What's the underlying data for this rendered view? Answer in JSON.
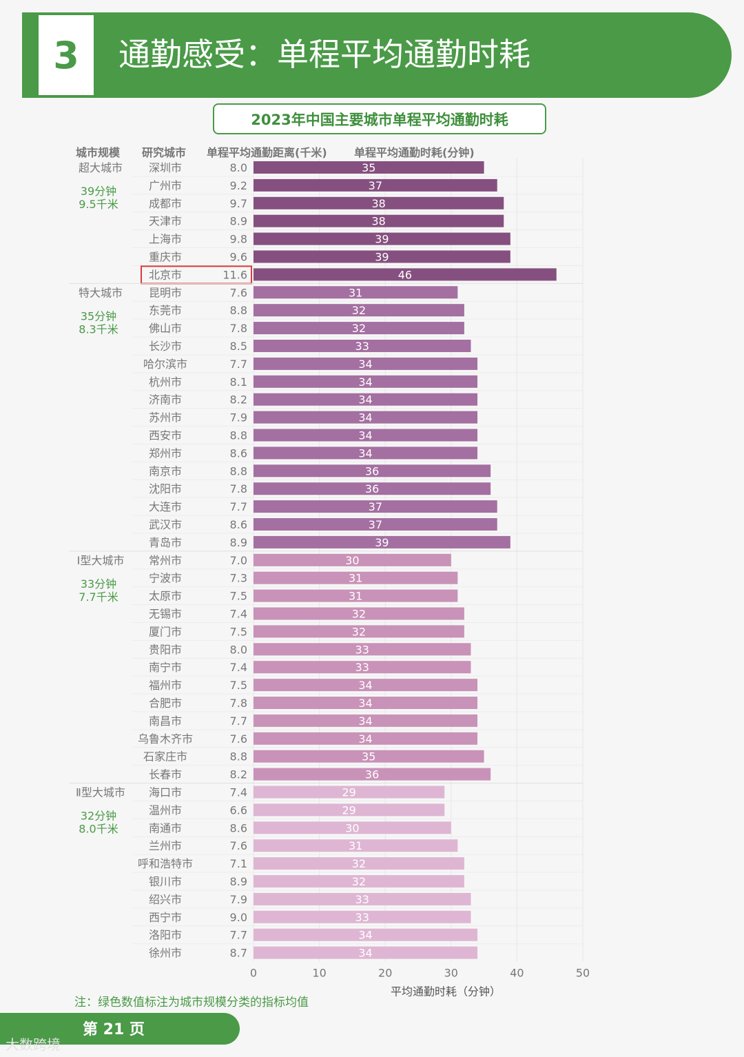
{
  "header": {
    "number": "3",
    "title": "通勤感受：单程平均通勤时耗"
  },
  "chart_title": "2023年中国主要城市单程平均通勤时耗",
  "columns": {
    "scale": "城市规模",
    "city": "研究城市",
    "distance": "单程平均通勤距离(千米)",
    "time": "单程平均通勤时耗(分钟)"
  },
  "note": "注：绿色数值标注为城市规模分类的指标均值",
  "footer": {
    "page": "第 21 页",
    "watermark": "大数跨境"
  },
  "colors": {
    "green": "#4a9a47",
    "group1": "#85507f",
    "group2": "#a46fa1",
    "group3": "#c992b8",
    "group4": "#deb6d3",
    "highlight": "#d83a3a"
  },
  "chart_data": {
    "type": "bar",
    "orientation": "horizontal",
    "xlabel": "平均通勤时耗（分钟）",
    "xlim": [
      0,
      50
    ],
    "xticks": [
      0,
      10,
      20,
      30,
      40,
      50
    ],
    "grid": true,
    "highlighted_city": "北京市",
    "groups": [
      {
        "name": "超大城市",
        "avg_time": "39分钟",
        "avg_distance": "9.5千米",
        "color_key": "group1",
        "cities": [
          {
            "city": "深圳市",
            "distance": "8.0",
            "time": 35
          },
          {
            "city": "广州市",
            "distance": "9.2",
            "time": 37
          },
          {
            "city": "成都市",
            "distance": "9.7",
            "time": 38
          },
          {
            "city": "天津市",
            "distance": "8.9",
            "time": 38
          },
          {
            "city": "上海市",
            "distance": "9.8",
            "time": 39
          },
          {
            "city": "重庆市",
            "distance": "9.6",
            "time": 39
          },
          {
            "city": "北京市",
            "distance": "11.6",
            "time": 46
          }
        ]
      },
      {
        "name": "特大城市",
        "avg_time": "35分钟",
        "avg_distance": "8.3千米",
        "color_key": "group2",
        "cities": [
          {
            "city": "昆明市",
            "distance": "7.6",
            "time": 31
          },
          {
            "city": "东莞市",
            "distance": "8.8",
            "time": 32
          },
          {
            "city": "佛山市",
            "distance": "7.8",
            "time": 32
          },
          {
            "city": "长沙市",
            "distance": "8.5",
            "time": 33
          },
          {
            "city": "哈尔滨市",
            "distance": "7.7",
            "time": 34
          },
          {
            "city": "杭州市",
            "distance": "8.1",
            "time": 34
          },
          {
            "city": "济南市",
            "distance": "8.2",
            "time": 34
          },
          {
            "city": "苏州市",
            "distance": "7.9",
            "time": 34
          },
          {
            "city": "西安市",
            "distance": "8.8",
            "time": 34
          },
          {
            "city": "郑州市",
            "distance": "8.6",
            "time": 34
          },
          {
            "city": "南京市",
            "distance": "8.8",
            "time": 36
          },
          {
            "city": "沈阳市",
            "distance": "7.8",
            "time": 36
          },
          {
            "city": "大连市",
            "distance": "7.7",
            "time": 37
          },
          {
            "city": "武汉市",
            "distance": "8.6",
            "time": 37
          },
          {
            "city": "青岛市",
            "distance": "8.9",
            "time": 39
          }
        ]
      },
      {
        "name": "Ⅰ型大城市",
        "avg_time": "33分钟",
        "avg_distance": "7.7千米",
        "color_key": "group3",
        "cities": [
          {
            "city": "常州市",
            "distance": "7.0",
            "time": 30
          },
          {
            "city": "宁波市",
            "distance": "7.3",
            "time": 31
          },
          {
            "city": "太原市",
            "distance": "7.5",
            "time": 31
          },
          {
            "city": "无锡市",
            "distance": "7.4",
            "time": 32
          },
          {
            "city": "厦门市",
            "distance": "7.5",
            "time": 32
          },
          {
            "city": "贵阳市",
            "distance": "8.0",
            "time": 33
          },
          {
            "city": "南宁市",
            "distance": "7.4",
            "time": 33
          },
          {
            "city": "福州市",
            "distance": "7.5",
            "time": 34
          },
          {
            "city": "合肥市",
            "distance": "7.8",
            "time": 34
          },
          {
            "city": "南昌市",
            "distance": "7.7",
            "time": 34
          },
          {
            "city": "乌鲁木齐市",
            "distance": "7.6",
            "time": 34
          },
          {
            "city": "石家庄市",
            "distance": "8.8",
            "time": 35
          },
          {
            "city": "长春市",
            "distance": "8.2",
            "time": 36
          }
        ]
      },
      {
        "name": "Ⅱ型大城市",
        "avg_time": "32分钟",
        "avg_distance": "8.0千米",
        "color_key": "group4",
        "cities": [
          {
            "city": "海口市",
            "distance": "7.4",
            "time": 29
          },
          {
            "city": "温州市",
            "distance": "6.6",
            "time": 29
          },
          {
            "city": "南通市",
            "distance": "8.6",
            "time": 30
          },
          {
            "city": "兰州市",
            "distance": "7.6",
            "time": 31
          },
          {
            "city": "呼和浩特市",
            "distance": "7.1",
            "time": 32
          },
          {
            "city": "银川市",
            "distance": "8.9",
            "time": 32
          },
          {
            "city": "绍兴市",
            "distance": "7.9",
            "time": 33
          },
          {
            "city": "西宁市",
            "distance": "9.0",
            "time": 33
          },
          {
            "city": "洛阳市",
            "distance": "7.7",
            "time": 34
          },
          {
            "city": "徐州市",
            "distance": "8.7",
            "time": 34
          }
        ]
      }
    ]
  }
}
